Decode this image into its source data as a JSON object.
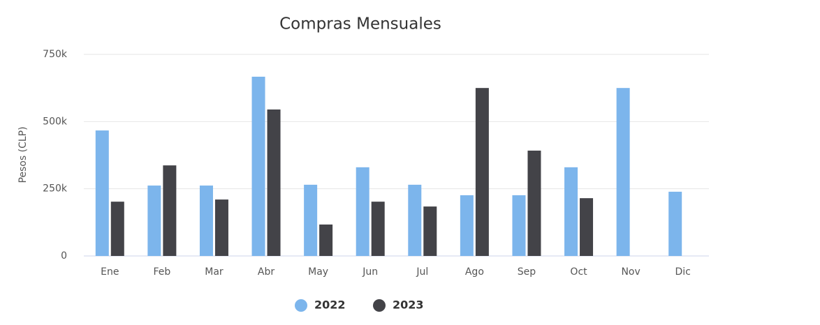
{
  "chart_data": {
    "type": "bar",
    "title": "Compras Mensuales",
    "y_label": "Pesos (CLP)",
    "categories": [
      "Ene",
      "Feb",
      "Mar",
      "Abr",
      "May",
      "Jun",
      "Jul",
      "Ago",
      "Sep",
      "Oct",
      "Nov",
      "Dic"
    ],
    "series": [
      {
        "name": "2022",
        "color": "#7cb5ec",
        "values": [
          467000,
          262000,
          262000,
          667000,
          265000,
          330000,
          265000,
          226000,
          226000,
          330000,
          625000,
          239000
        ]
      },
      {
        "name": "2023",
        "color": "#434348",
        "values": [
          202000,
          337000,
          210000,
          545000,
          117000,
          202000,
          184000,
          625000,
          392000,
          215000,
          null,
          null
        ]
      }
    ],
    "ylim": [
      0,
      750000
    ],
    "yticks": [
      0,
      {
        "value": 250000,
        "label": "250k"
      },
      {
        "value": 500000,
        "label": "500k"
      },
      {
        "value": 750000,
        "label": "750k"
      }
    ],
    "grid": true,
    "legend": "bottom"
  }
}
